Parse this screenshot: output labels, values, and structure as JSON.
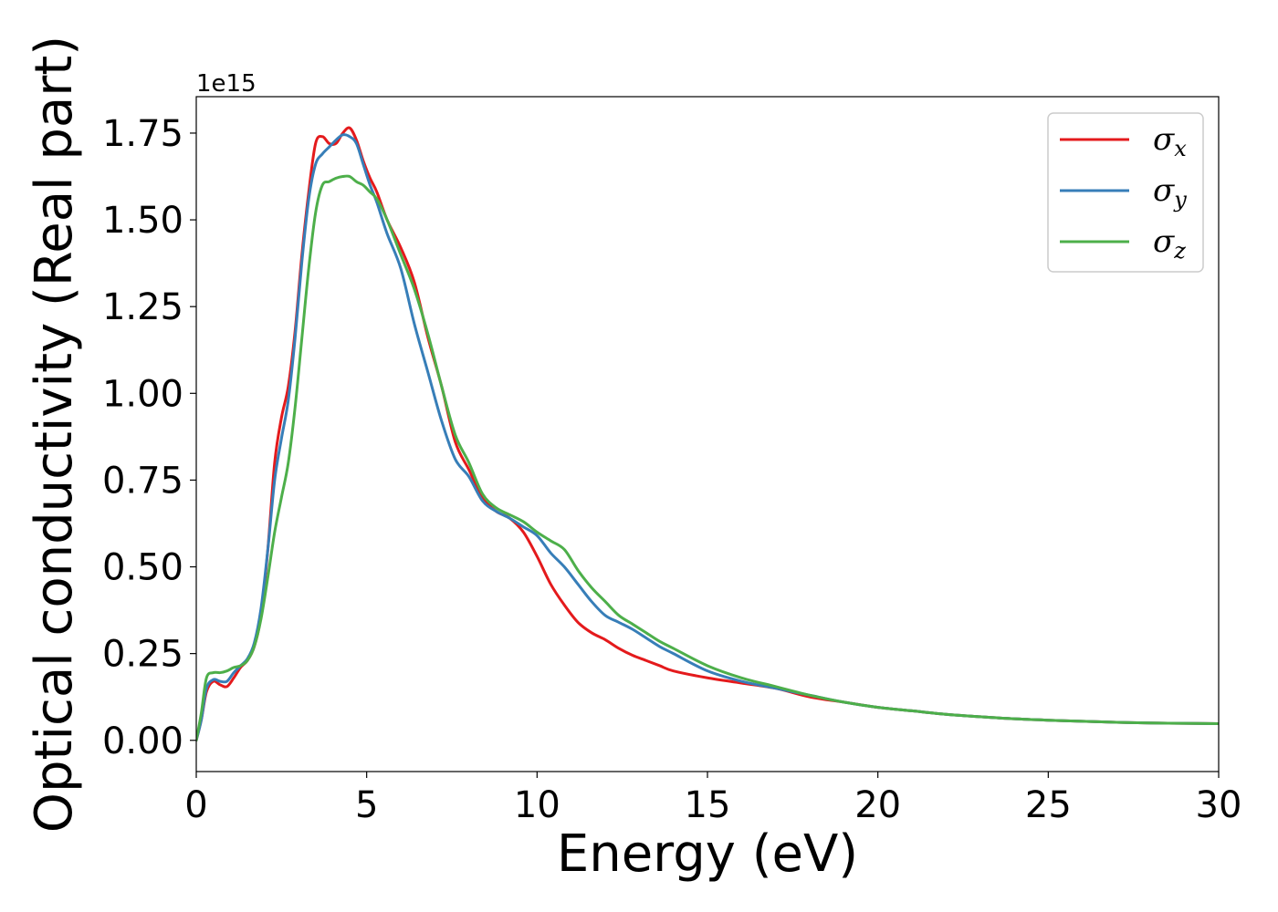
{
  "chart_data": {
    "type": "line",
    "title": "",
    "xlabel": "Energy (eV)",
    "ylabel": "Optical conductivity (Real part)",
    "y_offset_text": "1e15",
    "xlim": [
      0,
      30
    ],
    "ylim": [
      -0.09,
      1.855
    ],
    "xticks": [
      0,
      5,
      10,
      15,
      20,
      25,
      30
    ],
    "xtick_labels": [
      "0",
      "5",
      "10",
      "15",
      "20",
      "25",
      "30"
    ],
    "yticks": [
      0.0,
      0.25,
      0.5,
      0.75,
      1.0,
      1.25,
      1.5,
      1.75
    ],
    "ytick_labels": [
      "0.00",
      "0.25",
      "0.50",
      "0.75",
      "1.00",
      "1.25",
      "1.50",
      "1.75"
    ],
    "grid": false,
    "legend_position": "top-right",
    "series": [
      {
        "name": "σx",
        "legend_base": "σ",
        "legend_sub": "x",
        "color": "#e41a1c",
        "x": [
          0,
          0.15,
          0.3,
          0.5,
          0.7,
          0.9,
          1.1,
          1.3,
          1.5,
          1.7,
          1.9,
          2.1,
          2.3,
          2.5,
          2.7,
          2.9,
          3.1,
          3.3,
          3.5,
          3.7,
          3.9,
          4.1,
          4.3,
          4.5,
          4.7,
          4.9,
          5.1,
          5.3,
          5.6,
          6.0,
          6.4,
          6.8,
          7.2,
          7.6,
          8.0,
          8.4,
          8.8,
          9.2,
          9.6,
          10.0,
          10.4,
          10.8,
          11.2,
          11.6,
          12.0,
          12.4,
          12.8,
          13.2,
          13.6,
          14.0,
          15.0,
          16.0,
          17.0,
          18.0,
          19.0,
          20.0,
          21.0,
          22.0,
          23.0,
          24.0,
          25.0,
          26.0,
          27.0,
          28.0,
          29.0,
          30.0
        ],
        "y": [
          0.0,
          0.06,
          0.14,
          0.17,
          0.16,
          0.155,
          0.18,
          0.21,
          0.23,
          0.27,
          0.36,
          0.55,
          0.8,
          0.93,
          1.02,
          1.18,
          1.4,
          1.58,
          1.72,
          1.74,
          1.72,
          1.72,
          1.75,
          1.765,
          1.73,
          1.67,
          1.62,
          1.58,
          1.5,
          1.42,
          1.32,
          1.16,
          1.02,
          0.86,
          0.78,
          0.7,
          0.66,
          0.64,
          0.6,
          0.53,
          0.45,
          0.39,
          0.34,
          0.31,
          0.29,
          0.265,
          0.245,
          0.23,
          0.215,
          0.2,
          0.18,
          0.165,
          0.15,
          0.125,
          0.11,
          0.095,
          0.085,
          0.075,
          0.068,
          0.062,
          0.058,
          0.055,
          0.052,
          0.05,
          0.049,
          0.048
        ]
      },
      {
        "name": "σy",
        "legend_base": "σ",
        "legend_sub": "y",
        "color": "#377eb8",
        "x": [
          0,
          0.15,
          0.3,
          0.5,
          0.7,
          0.9,
          1.1,
          1.3,
          1.5,
          1.7,
          1.9,
          2.1,
          2.3,
          2.5,
          2.7,
          2.9,
          3.1,
          3.3,
          3.5,
          3.7,
          3.9,
          4.1,
          4.3,
          4.5,
          4.7,
          4.9,
          5.1,
          5.3,
          5.6,
          6.0,
          6.4,
          6.8,
          7.2,
          7.6,
          8.0,
          8.4,
          8.8,
          9.2,
          9.6,
          10.0,
          10.4,
          10.8,
          11.2,
          11.6,
          12.0,
          12.4,
          12.8,
          13.2,
          13.6,
          14.0,
          15.0,
          16.0,
          17.0,
          18.0,
          19.0,
          20.0,
          21.0,
          22.0,
          23.0,
          24.0,
          25.0,
          26.0,
          27.0,
          28.0,
          29.0,
          30.0
        ],
        "y": [
          0.0,
          0.06,
          0.15,
          0.175,
          0.17,
          0.17,
          0.195,
          0.215,
          0.235,
          0.28,
          0.38,
          0.55,
          0.75,
          0.87,
          0.98,
          1.16,
          1.38,
          1.56,
          1.66,
          1.69,
          1.71,
          1.73,
          1.745,
          1.74,
          1.72,
          1.66,
          1.6,
          1.55,
          1.46,
          1.36,
          1.2,
          1.06,
          0.92,
          0.81,
          0.76,
          0.69,
          0.66,
          0.64,
          0.615,
          0.59,
          0.54,
          0.5,
          0.45,
          0.4,
          0.36,
          0.34,
          0.32,
          0.295,
          0.27,
          0.25,
          0.2,
          0.17,
          0.15,
          0.13,
          0.11,
          0.095,
          0.085,
          0.075,
          0.068,
          0.062,
          0.058,
          0.055,
          0.052,
          0.05,
          0.049,
          0.048
        ]
      },
      {
        "name": "σz",
        "legend_base": "σ",
        "legend_sub": "z",
        "color": "#4daf4a",
        "x": [
          0,
          0.15,
          0.3,
          0.5,
          0.7,
          0.9,
          1.1,
          1.3,
          1.5,
          1.7,
          1.9,
          2.1,
          2.3,
          2.5,
          2.7,
          2.9,
          3.1,
          3.3,
          3.5,
          3.7,
          3.9,
          4.1,
          4.3,
          4.5,
          4.7,
          4.9,
          5.1,
          5.3,
          5.6,
          6.0,
          6.4,
          6.8,
          7.2,
          7.6,
          8.0,
          8.4,
          8.8,
          9.2,
          9.6,
          10.0,
          10.4,
          10.8,
          11.2,
          11.6,
          12.0,
          12.4,
          12.8,
          13.2,
          13.6,
          14.0,
          15.0,
          16.0,
          17.0,
          18.0,
          19.0,
          20.0,
          21.0,
          22.0,
          23.0,
          24.0,
          25.0,
          26.0,
          27.0,
          28.0,
          29.0,
          30.0
        ],
        "y": [
          0.0,
          0.08,
          0.18,
          0.195,
          0.195,
          0.2,
          0.21,
          0.215,
          0.23,
          0.27,
          0.35,
          0.47,
          0.6,
          0.7,
          0.8,
          0.96,
          1.16,
          1.36,
          1.52,
          1.6,
          1.61,
          1.62,
          1.625,
          1.625,
          1.61,
          1.6,
          1.58,
          1.56,
          1.5,
          1.4,
          1.3,
          1.17,
          1.02,
          0.88,
          0.8,
          0.71,
          0.67,
          0.65,
          0.63,
          0.6,
          0.575,
          0.55,
          0.49,
          0.44,
          0.4,
          0.36,
          0.335,
          0.31,
          0.285,
          0.265,
          0.215,
          0.18,
          0.155,
          0.13,
          0.11,
          0.095,
          0.085,
          0.075,
          0.068,
          0.062,
          0.058,
          0.055,
          0.052,
          0.05,
          0.049,
          0.048
        ]
      }
    ]
  }
}
